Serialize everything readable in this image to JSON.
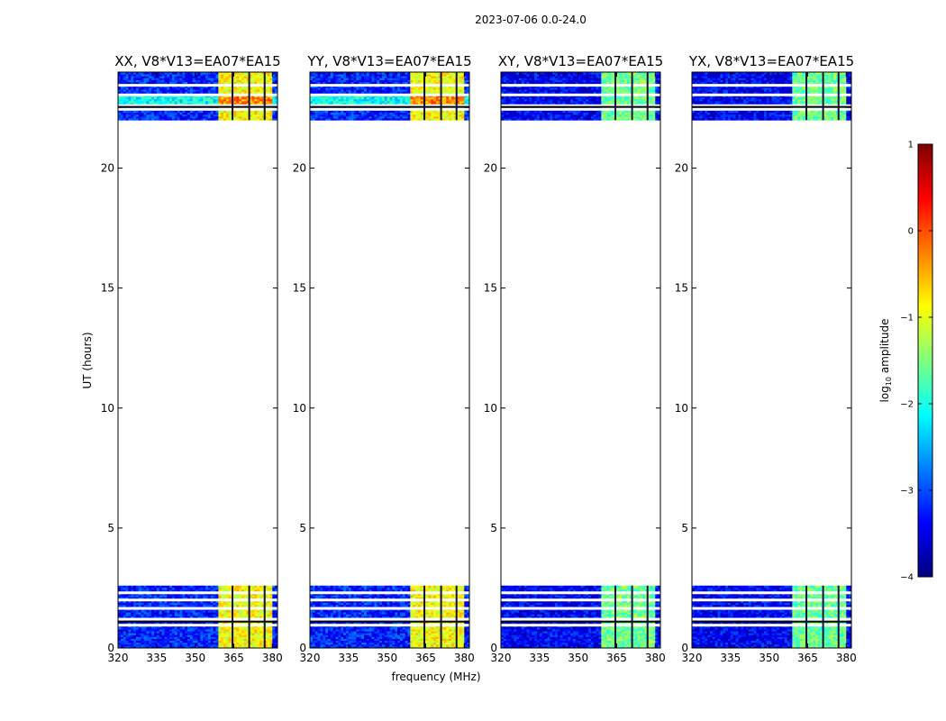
{
  "chart_data": {
    "type": "heatmap",
    "title": "2023-07-06 0.0-24.0",
    "xlabel": "frequency (MHz)",
    "ylabel": "UT (hours)",
    "xlim": [
      320,
      382
    ],
    "ylim": [
      0,
      24
    ],
    "x_ticks": [
      "320",
      "335",
      "350",
      "365",
      "380"
    ],
    "x_tick_values": [
      320,
      335,
      350,
      365,
      380
    ],
    "y_ticks": [
      "0",
      "5",
      "10",
      "15",
      "20"
    ],
    "y_tick_values": [
      0,
      5,
      10,
      15,
      20
    ],
    "time_coverage_hours": [
      [
        0,
        2.6
      ],
      [
        22.0,
        24.0
      ]
    ],
    "rfi_band_mhz": [
      359.5,
      379.5
    ],
    "colorbar": {
      "label": "log10 amplitude",
      "label_main": "log",
      "label_sub": "10",
      "label_rest": " amplitude",
      "range": [
        -4,
        1
      ],
      "ticks": [
        "−4",
        "−3",
        "−2",
        "−1",
        "0",
        "1"
      ],
      "tick_values": [
        -4,
        -3,
        -2,
        -1,
        0,
        1
      ],
      "colormap": "jet"
    },
    "panels": [
      {
        "title": "XX, V8*V13=EA07*EA15",
        "band_level": -0.9,
        "background_level": -3.2
      },
      {
        "title": "YY, V8*V13=EA07*EA15",
        "band_level": -0.9,
        "background_level": -3.2
      },
      {
        "title": "XY, V8*V13=EA07*EA15",
        "band_level": -1.6,
        "background_level": -3.4
      },
      {
        "title": "YX, V8*V13=EA07*EA15",
        "band_level": -1.6,
        "background_level": -3.4
      }
    ]
  },
  "colors": {
    "axes": "#000000",
    "background": "#ffffff",
    "colormap_stops": [
      "#00007f",
      "#0000ff",
      "#007fff",
      "#00ffff",
      "#7fff7f",
      "#ffff00",
      "#ff7f00",
      "#ff0000",
      "#7f0000"
    ]
  }
}
